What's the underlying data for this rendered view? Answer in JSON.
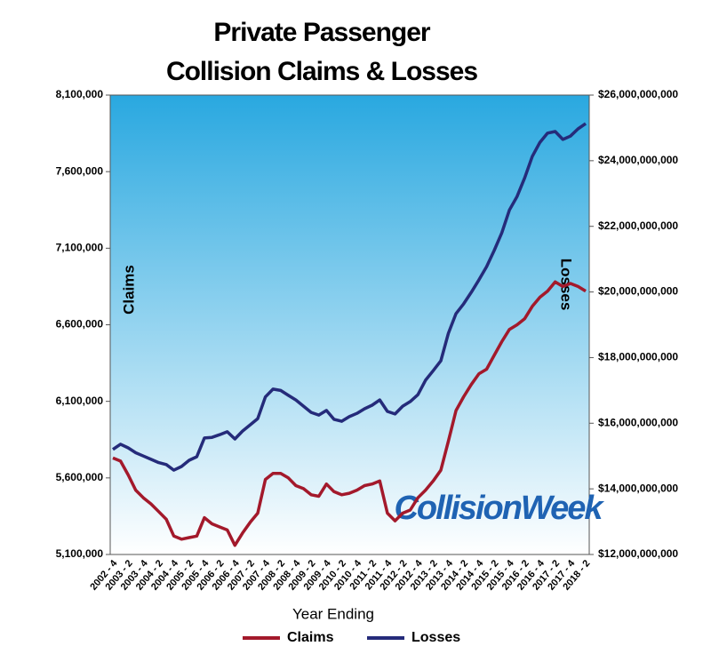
{
  "chart_data": {
    "type": "line",
    "title": [
      "Private Passenger",
      "Collision Claims & Losses"
    ],
    "x_label": "Year Ending",
    "y_label": "Claims",
    "y2_label": "Losses",
    "watermark": "CollisionWeek",
    "categories": [
      "2002 - 4",
      null,
      "2003 - 2",
      null,
      "2003 - 4",
      null,
      "2004 - 2",
      null,
      "2004 - 4",
      null,
      "2005 - 2",
      null,
      "2005 - 4",
      null,
      "2006 - 2",
      null,
      "2006 - 4",
      null,
      "2007 - 2",
      null,
      "2007 - 4",
      null,
      "2008 - 2",
      null,
      "2008 - 4",
      null,
      "2009 - 2",
      null,
      "2009 - 4",
      null,
      "2010 - 2",
      null,
      "2010 - 4",
      null,
      "2011 - 2",
      null,
      "2011 - 4",
      null,
      "2012 - 2",
      null,
      "2012 - 4",
      null,
      "2013 - 2",
      null,
      "2013 - 4",
      null,
      "2014 - 2",
      null,
      "2014 - 4",
      null,
      "2015 - 2",
      null,
      "2015 - 4",
      null,
      "2016 - 2",
      null,
      "2016 - 4",
      null,
      "2017 - 2",
      null,
      "2017 - 4",
      null,
      "2018 - 2"
    ],
    "series": [
      {
        "name": "Claims",
        "color": "#a3192b",
        "values": [
          5730000,
          5710000,
          5620000,
          5520000,
          5470000,
          5430000,
          5380000,
          5330000,
          5220000,
          5200000,
          5210000,
          5220000,
          5340000,
          5300000,
          5280000,
          5260000,
          5160000,
          5240000,
          5310000,
          5370000,
          5590000,
          5630000,
          5630000,
          5600000,
          5550000,
          5530000,
          5490000,
          5480000,
          5560000,
          5510000,
          5490000,
          5500000,
          5520000,
          5550000,
          5560000,
          5580000,
          5370000,
          5320000,
          5370000,
          5390000,
          5470000,
          5520000,
          5580000,
          5650000,
          5840000,
          6040000,
          6130000,
          6210000,
          6280000,
          6310000,
          6400000,
          6490000,
          6570000,
          6600000,
          6640000,
          6720000,
          6780000,
          6820000,
          6880000,
          6850000,
          6870000,
          6850000,
          6820000
        ]
      },
      {
        "name": "Losses",
        "color": "#252b7a",
        "axis": "y2",
        "values": [
          15200000000,
          15360000000,
          15250000000,
          15100000000,
          15000000000,
          14900000000,
          14800000000,
          14740000000,
          14570000000,
          14680000000,
          14870000000,
          14980000000,
          15550000000,
          15570000000,
          15650000000,
          15740000000,
          15520000000,
          15760000000,
          15950000000,
          16140000000,
          16800000000,
          17040000000,
          17000000000,
          16850000000,
          16710000000,
          16520000000,
          16330000000,
          16250000000,
          16390000000,
          16120000000,
          16060000000,
          16200000000,
          16300000000,
          16440000000,
          16550000000,
          16710000000,
          16360000000,
          16280000000,
          16520000000,
          16660000000,
          16870000000,
          17310000000,
          17600000000,
          17900000000,
          18740000000,
          19340000000,
          19640000000,
          19990000000,
          20370000000,
          20770000000,
          21260000000,
          21800000000,
          22500000000,
          22910000000,
          23480000000,
          24130000000,
          24560000000,
          24840000000,
          24890000000,
          24650000000,
          24750000000,
          24970000000,
          25130000000
        ]
      }
    ],
    "ylim": [
      5100000,
      8100000
    ],
    "yticks": [
      {
        "value": 5100000,
        "label": "5,100,000"
      },
      {
        "value": 5600000,
        "label": "5,600,000"
      },
      {
        "value": 6100000,
        "label": "6,100,000"
      },
      {
        "value": 6600000,
        "label": "6,600,000"
      },
      {
        "value": 7100000,
        "label": "7,100,000"
      },
      {
        "value": 7600000,
        "label": "7,600,000"
      },
      {
        "value": 8100000,
        "label": "8,100,000"
      }
    ],
    "y2lim": [
      12000000000,
      26000000000
    ],
    "y2ticks": [
      {
        "value": 12000000000,
        "label": "$12,000,000,000"
      },
      {
        "value": 14000000000,
        "label": "$14,000,000,000"
      },
      {
        "value": 16000000000,
        "label": "$16,000,000,000"
      },
      {
        "value": 18000000000,
        "label": "$18,000,000,000"
      },
      {
        "value": 20000000000,
        "label": "$20,000,000,000"
      },
      {
        "value": 22000000000,
        "label": "$22,000,000,000"
      },
      {
        "value": 24000000000,
        "label": "$24,000,000,000"
      },
      {
        "value": 26000000000,
        "label": "$26,000,000,000"
      }
    ],
    "grid": false,
    "legend": "bottom"
  }
}
